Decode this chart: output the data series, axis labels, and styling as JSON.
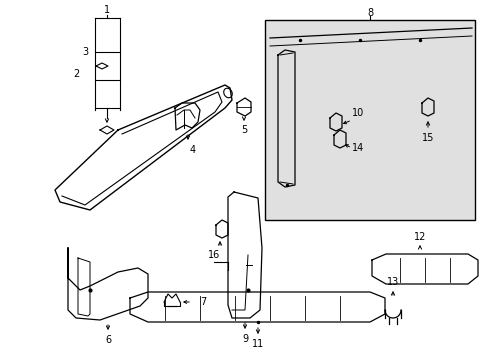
{
  "background_color": "#ffffff",
  "figure_width": 4.89,
  "figure_height": 3.6,
  "dpi": 100,
  "line_color": "#000000",
  "text_color": "#000000",
  "panel_fill": "#e0e0e0"
}
